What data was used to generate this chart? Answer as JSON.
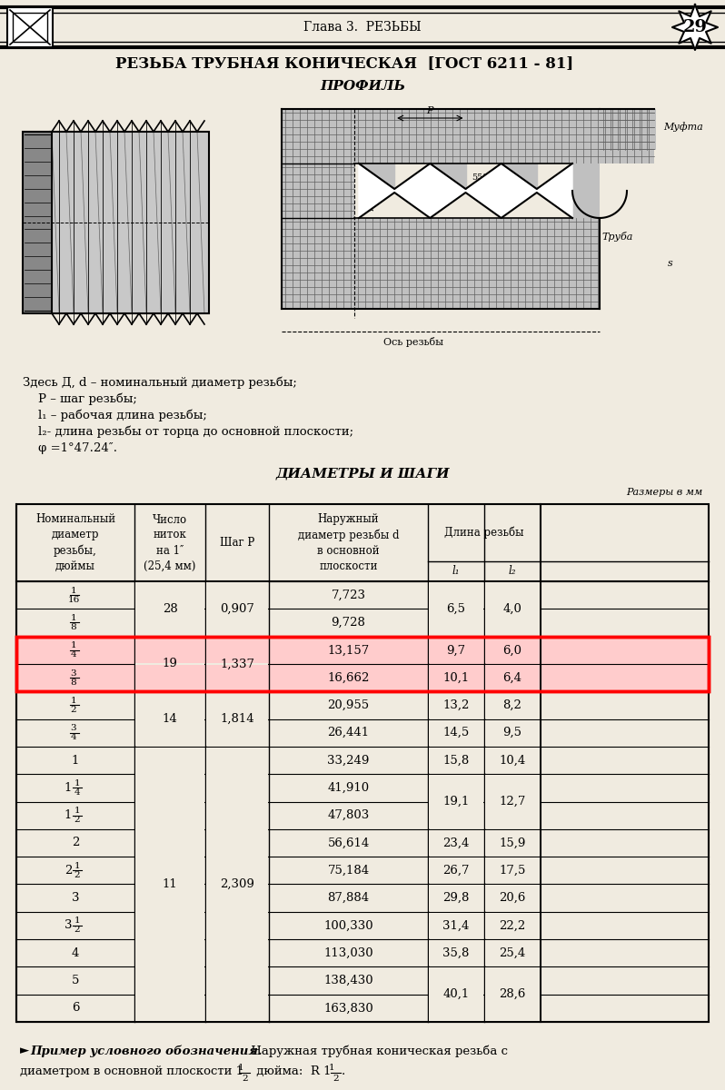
{
  "page_title": "Глава 3.  РЕЗЬБЫ",
  "page_number": "29",
  "main_title": "РЕЗЬБА ТРУБНАЯ КОНИЧЕСКАЯ  [ГОСТ 6211 - 81]",
  "profile_title": "ПРОФИЛЬ",
  "table_section_title": "ДИАМЕТРЫ И ШАГИ",
  "sizes_note": "Размеры в мм",
  "description_lines": [
    "Здесь Д, d – номинальный диаметр резьбы;",
    "    P – шаг резьбы;",
    "    l₁ – рабочая длина резьбы;",
    "    l₂- длина резьбы от торца до основной плоскости;",
    "    φ =1°47․24″."
  ],
  "col_headers_col0": "Номинальный\nдиаметр\nрезьбы,\nдюймы",
  "col_headers_col1": "Число\nниток\nна 1″\n(25,4 мм)",
  "col_headers_col2": "Шаг P",
  "col_headers_col3": "Наружный\nдиаметр резьбы d\nв основной\nплоскости",
  "col_headers_col45": "Длина резьбы",
  "col_headers_l1": "l₁",
  "col_headers_l2": "l₂",
  "rows": [
    {
      "diam": "1/16",
      "d": "7,723"
    },
    {
      "diam": "1/8",
      "d": "9,728"
    },
    {
      "diam": "1/4",
      "d": "13,157"
    },
    {
      "diam": "3/8",
      "d": "16,662"
    },
    {
      "diam": "1/2",
      "d": "20,955"
    },
    {
      "diam": "3/4",
      "d": "26,441"
    },
    {
      "diam": "1",
      "d": "33,249"
    },
    {
      "diam": "1 1/4",
      "d": "41,910"
    },
    {
      "diam": "1 1/2",
      "d": "47,803"
    },
    {
      "diam": "2",
      "d": "56,614"
    },
    {
      "diam": "2 1/2",
      "d": "75,184"
    },
    {
      "diam": "3",
      "d": "87,884"
    },
    {
      "diam": "3 1/2",
      "d": "100,330"
    },
    {
      "diam": "4",
      "d": "113,030"
    },
    {
      "diam": "5",
      "d": "138,430"
    },
    {
      "diam": "6",
      "d": "163,830"
    }
  ],
  "nitki_merges": [
    [
      0,
      1,
      "28"
    ],
    [
      2,
      3,
      "19"
    ],
    [
      4,
      5,
      "14"
    ],
    [
      6,
      15,
      "11"
    ]
  ],
  "shag_merges": [
    [
      0,
      1,
      "0,907"
    ],
    [
      2,
      3,
      "1,337"
    ],
    [
      4,
      5,
      "1,814"
    ],
    [
      6,
      15,
      "2,309"
    ]
  ],
  "l1_merges": [
    [
      0,
      1,
      "6,5"
    ],
    [
      2,
      2,
      "9,7"
    ],
    [
      3,
      3,
      "10,1"
    ],
    [
      4,
      4,
      "13,2"
    ],
    [
      5,
      5,
      "14,5"
    ],
    [
      6,
      6,
      "15,8"
    ],
    [
      7,
      8,
      "19,1"
    ],
    [
      9,
      9,
      "23,4"
    ],
    [
      10,
      10,
      "26,7"
    ],
    [
      11,
      11,
      "29,8"
    ],
    [
      12,
      12,
      "31,4"
    ],
    [
      13,
      13,
      "35,8"
    ],
    [
      14,
      15,
      "40,1"
    ]
  ],
  "l2_merges": [
    [
      0,
      1,
      "4,0"
    ],
    [
      2,
      2,
      "6,0"
    ],
    [
      3,
      3,
      "6,4"
    ],
    [
      4,
      4,
      "8,2"
    ],
    [
      5,
      5,
      "9,5"
    ],
    [
      6,
      6,
      "10,4"
    ],
    [
      7,
      8,
      "12,7"
    ],
    [
      9,
      9,
      "15,9"
    ],
    [
      10,
      10,
      "17,5"
    ],
    [
      11,
      11,
      "20,6"
    ],
    [
      12,
      12,
      "22,2"
    ],
    [
      13,
      13,
      "25,4"
    ],
    [
      14,
      15,
      "28,6"
    ]
  ],
  "highlight_rows": [
    2,
    3
  ],
  "bg_color": "#f0ebe0",
  "highlight_color": "#ffcccc"
}
